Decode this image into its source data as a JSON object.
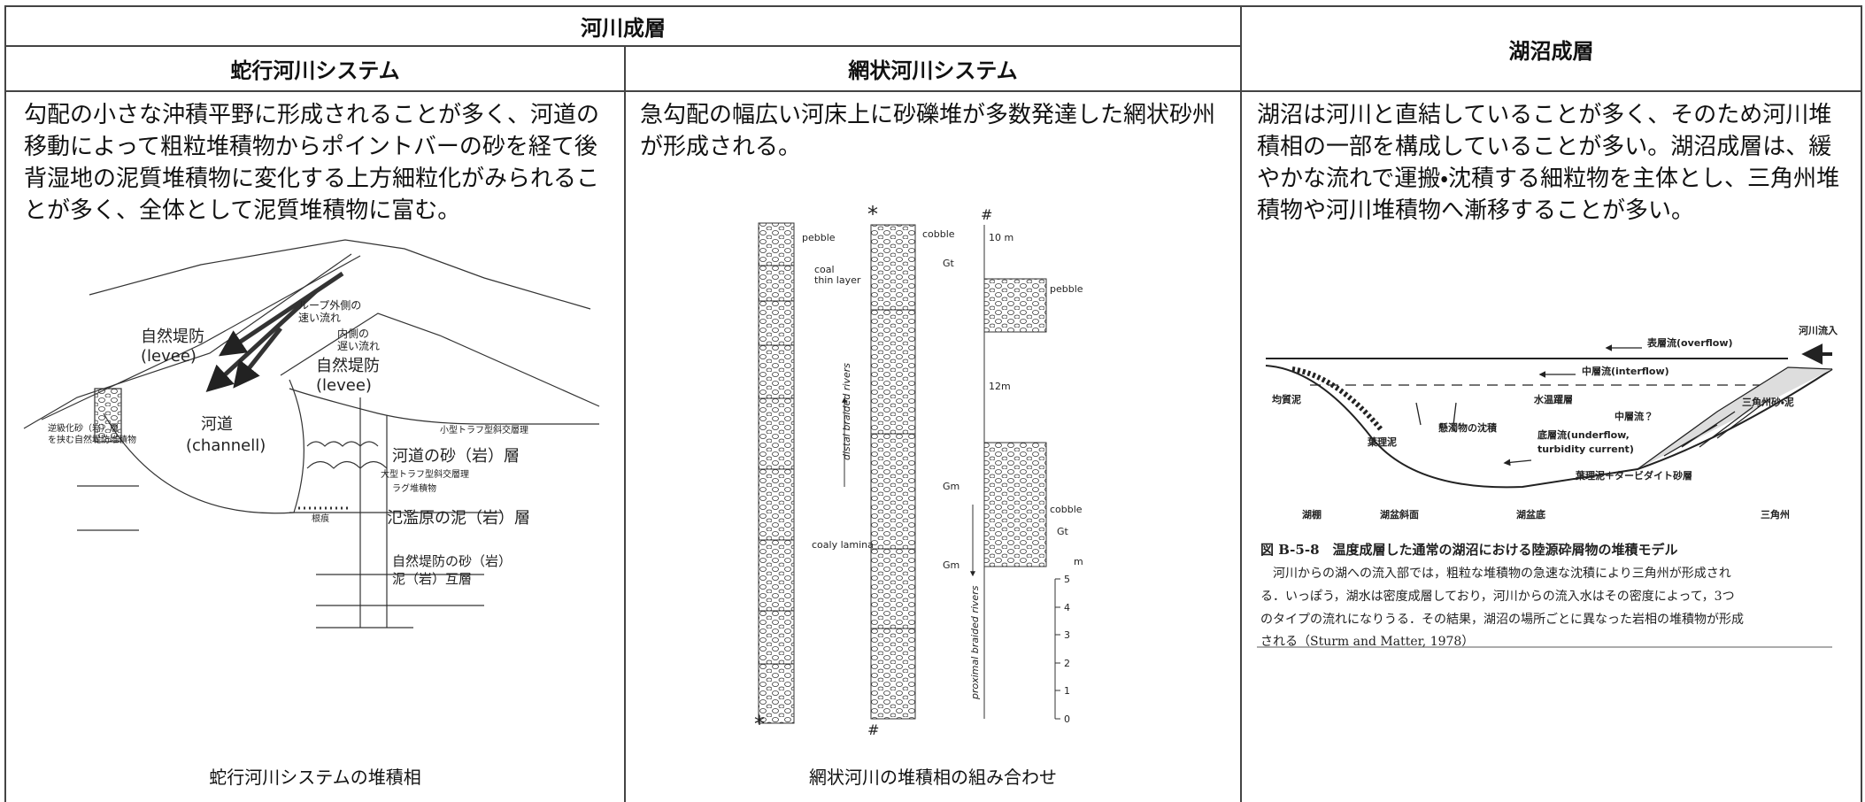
{
  "table": {
    "group_header": "河川成層",
    "columns": [
      {
        "header": "蛇行河川システム",
        "text": "勾配の小さな沖積平野に形成されることが多く、河道の移動によって粗粒堆積物からポイントバーの砂を経て後背湿地の泥質堆積物に変化する上方細粒化がみられることが多く、全体として泥質堆積物に富む。",
        "figure": {
          "labels": [
            "自然堤防",
            "(levee)",
            "ループ外側の",
            "速い流れ",
            "内側の",
            "遅い流れ",
            "自然堤防",
            "(levee)",
            "河道",
            "(channell)",
            "小型トラフ型斜交層理",
            "河道の砂（岩）層",
            "大型トラフ型斜交層理",
            "ラグ堆積物",
            "逆級化砂（岩）層",
            "を挟む自然堤防堆積物",
            "根痕",
            "氾濫原の泥（岩）層",
            "自然堤防の砂（岩）",
            "泥（岩）互層"
          ]
        },
        "caption": "蛇行河川システムの堆積相"
      },
      {
        "header": "網状河川システム",
        "text": "急勾配の幅広い河床上に砂礫堆が多数発達した網状砂州が形成される。",
        "figure": {
          "labels": [
            "pebble",
            "coal",
            "thin layer",
            "coaly lamina",
            "cobble",
            "Gt",
            "Gm",
            "Gm",
            "10 m",
            "pebble",
            "12m",
            "cobble",
            "Gt",
            "m",
            "distal braided rivers",
            "proximal braided rivers",
            "*",
            "*",
            "#",
            "#"
          ],
          "scale": [
            5,
            4,
            3,
            2,
            1,
            0
          ]
        },
        "caption": "網状河川の堆積相の組み合わせ"
      }
    ],
    "lake": {
      "header": "湖沼成層",
      "text": "湖沼は河川と直結していることが多く、そのため河川堆積相の一部を構成していることが多い。湖沼成層は、緩やかな流れで運搬・沈積する細粒物を主体とし、三角州堆積物や河川堆積物へ漸移することが多い。",
      "figure": {
        "labels": [
          "河川流入",
          "表層流(overflow)",
          "中層流(interflow)",
          "均質泥",
          "水温躍層",
          "中層流？",
          "三角州砂・泥",
          "懸濁物の沈積",
          "底層流(underflow,",
          "turbidity current)",
          "葉理泥",
          "葉理泥＋タービダイト砂層",
          "湖棚",
          "湖盆斜面",
          "湖盆底",
          "三角州"
        ],
        "caption_title": "図 B-5-8　温度成層した通常の湖沼における陸源砕屑物の堆積モデル",
        "caption_lines": [
          "河川からの湖への流入部では，粗粒な堆積物の急速な沈積により三角州が形成され",
          "る．いっぽう，湖水は密度成層しており，河川からの流入水はその密度によって，3つ",
          "のタイプの流れになりうる．その結果，湖沼の場所ごとに異なった岩相の堆積物が形成",
          "される（Sturm and Matter, 1978）"
        ]
      }
    }
  }
}
